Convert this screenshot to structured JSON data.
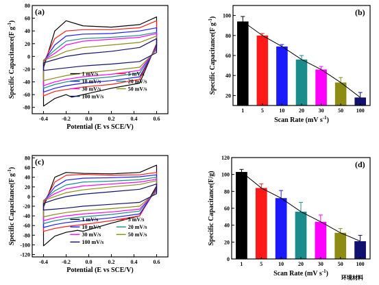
{
  "watermark": "环境材料",
  "colors": {
    "black": "#000000",
    "red": "#ff1a1a",
    "blue": "#1a1aff",
    "teal": "#1a8c8c",
    "magenta": "#ff00ff",
    "olive": "#8c8c14",
    "navy": "#10106e"
  },
  "chart_data": [
    {
      "type": "line",
      "panel_label": "(a)",
      "xlabel": "Potential (E vs SCE/V)",
      "ylabel": "Specific Capacitance(F g",
      "ylabel_sup": "-1",
      "ylabel_close": ")",
      "xlim": [
        -0.5,
        0.7
      ],
      "ylim": [
        -90,
        80
      ],
      "xticks": [
        -0.4,
        -0.2,
        0.0,
        0.2,
        0.4,
        0.6
      ],
      "xtick_labels": [
        "-0.4",
        "-0.2",
        "0.0",
        "0.2",
        "0.4",
        "0.6"
      ],
      "yticks": [
        -80,
        -60,
        -40,
        -20,
        0,
        20,
        40,
        60,
        80
      ],
      "series": [
        {
          "name": "1 mV/s",
          "color": "#000000",
          "cv": {
            "top": [
              -18,
              40,
              56,
              48,
              46,
              50,
              62
            ],
            "bottom": [
              -78,
              -66,
              -60,
              -60,
              -50,
              -42,
              20
            ],
            "dip": {
              "x": -0.15,
              "y": -64
            },
            "hump": {
              "x": 0.05,
              "y": 55
            }
          }
        },
        {
          "name": "5 mV/s",
          "color": "#ff1a1a",
          "cv": {
            "top": [
              -10,
              28,
              40,
              42,
              42,
              45,
              56
            ],
            "bottom": [
              -62,
              -55,
              -52,
              -48,
              -44,
              -36,
              18
            ]
          }
        },
        {
          "name": "10 mV/s",
          "color": "#1a1aff",
          "cv": {
            "top": [
              -8,
              18,
              32,
              35,
              36,
              40,
              45
            ],
            "bottom": [
              -56,
              -50,
              -46,
              -42,
              -38,
              -32,
              16
            ]
          }
        },
        {
          "name": "20 mV/s",
          "color": "#1a8c8c",
          "cv": {
            "top": [
              -6,
              10,
              24,
              28,
              30,
              33,
              38
            ],
            "bottom": [
              -50,
              -44,
              -40,
              -36,
              -32,
              -26,
              14
            ]
          }
        },
        {
          "name": "30 mV/s",
          "color": "#ff00ff",
          "cv": {
            "top": [
              -6,
              5,
              18,
              24,
              27,
              30,
              36
            ],
            "bottom": [
              -46,
              -40,
              -36,
              -32,
              -28,
              -22,
              12
            ]
          }
        },
        {
          "name": "50 mV/s",
          "color": "#8c8c14",
          "cv": {
            "top": [
              -6,
              0,
              8,
              14,
              18,
              22,
              32
            ],
            "bottom": [
              -38,
              -34,
              -30,
              -26,
              -22,
              -17,
              10
            ]
          }
        },
        {
          "name": "100 mV/s",
          "color": "#10106e",
          "cv": {
            "top": [
              -10,
              -5,
              0,
              4,
              8,
              14,
              28
            ],
            "bottom": [
              -22,
              -20,
              -18,
              -15,
              -12,
              -8,
              6
            ]
          }
        }
      ]
    },
    {
      "type": "bar",
      "panel_label": "(b)",
      "xlabel": "Scan Rate (mV s",
      "xlabel_sup": "-1",
      "xlabel_close": ")",
      "ylabel": "Specific Capacitance(F g",
      "ylabel_sup": "-1",
      "ylabel_close": ")",
      "categories": [
        "1",
        "5",
        "10",
        "20",
        "30",
        "50",
        "100"
      ],
      "values": [
        94,
        80,
        69,
        56,
        46,
        33,
        18
      ],
      "errors": [
        5,
        2,
        2,
        4,
        3,
        5,
        5
      ],
      "bar_colors": [
        "#000000",
        "#ff1a1a",
        "#1a1aff",
        "#1a8c8c",
        "#ff00ff",
        "#8c8c14",
        "#10106e"
      ],
      "ylim": [
        10,
        110
      ],
      "yticks": [
        20,
        40,
        60,
        80,
        100
      ]
    },
    {
      "type": "line",
      "panel_label": "(c)",
      "xlabel": "Potential (E vs SCE/V)",
      "ylabel": "Specific Capacitance(F g",
      "ylabel_sup": "-1",
      "ylabel_close": ")",
      "xlim": [
        -0.5,
        0.7
      ],
      "ylim": [
        -125,
        85
      ],
      "xticks": [
        -0.4,
        -0.2,
        0.0,
        0.2,
        0.4,
        0.6
      ],
      "xtick_labels": [
        "-0.4",
        "-0.2",
        "0.0",
        "0.2",
        "0.4",
        "0.6"
      ],
      "yticks": [
        -120,
        -100,
        -80,
        -60,
        -40,
        -20,
        0,
        20,
        40,
        60,
        80
      ],
      "series": [
        {
          "name": "1 mV/s",
          "color": "#000000",
          "cv": {
            "top": [
              -22,
              40,
              50,
              48,
              47,
              50,
              65
            ],
            "bottom": [
              -102,
              -82,
              -74,
              -72,
              -55,
              -40,
              22
            ],
            "dip": {
              "x": -0.1,
              "y": -70
            },
            "hump": {
              "x": 0.02,
              "y": 52
            }
          }
        },
        {
          "name": "5 mV/s",
          "color": "#ff1a1a",
          "cv": {
            "top": [
              -14,
              30,
              44,
              46,
              44,
              45,
              50
            ],
            "bottom": [
              -72,
              -66,
              -62,
              -58,
              -50,
              -40,
              18
            ]
          }
        },
        {
          "name": "10 mV/s",
          "color": "#1a1aff",
          "cv": {
            "top": [
              -10,
              20,
              34,
              38,
              39,
              41,
              45
            ],
            "bottom": [
              -64,
              -58,
              -54,
              -50,
              -44,
              -36,
              16
            ]
          }
        },
        {
          "name": "20 mV/s",
          "color": "#1a8c8c",
          "cv": {
            "top": [
              -8,
              12,
              24,
              30,
              32,
              35,
              40
            ],
            "bottom": [
              -56,
              -50,
              -46,
              -42,
              -37,
              -30,
              14
            ]
          }
        },
        {
          "name": "30 mV/s",
          "color": "#ff00ff",
          "cv": {
            "top": [
              -8,
              6,
              16,
              22,
              26,
              30,
              36
            ],
            "bottom": [
              -50,
              -44,
              -40,
              -36,
              -32,
              -26,
              12
            ]
          }
        },
        {
          "name": "50 mV/s",
          "color": "#8c8c14",
          "cv": {
            "top": [
              -8,
              0,
              8,
              14,
              20,
              25,
              33
            ],
            "bottom": [
              -42,
              -37,
              -33,
              -29,
              -25,
              -20,
              10
            ]
          }
        },
        {
          "name": "100 mV/s",
          "color": "#10106e",
          "cv": {
            "top": [
              -14,
              -6,
              0,
              5,
              10,
              15,
              26
            ],
            "bottom": [
              -28,
              -26,
              -24,
              -20,
              -16,
              -12,
              6
            ]
          }
        }
      ]
    },
    {
      "type": "bar",
      "panel_label": "(d)",
      "xlabel": "Scan Rate (mV s",
      "xlabel_sup": "-1",
      "xlabel_close": ")",
      "ylabel": "Specific Capacitance(F/g)",
      "categories": [
        "1",
        "5",
        "10",
        "20",
        "30",
        "50",
        "100"
      ],
      "values": [
        103,
        84,
        72,
        56,
        44,
        31,
        21
      ],
      "errors": [
        3,
        5,
        9,
        11,
        8,
        5,
        7
      ],
      "bar_colors": [
        "#000000",
        "#ff1a1a",
        "#1a1aff",
        "#1a8c8c",
        "#ff00ff",
        "#8c8c14",
        "#10106e"
      ],
      "ylim": [
        0,
        120
      ],
      "yticks": [
        0,
        20,
        40,
        60,
        80,
        100,
        120
      ]
    }
  ]
}
